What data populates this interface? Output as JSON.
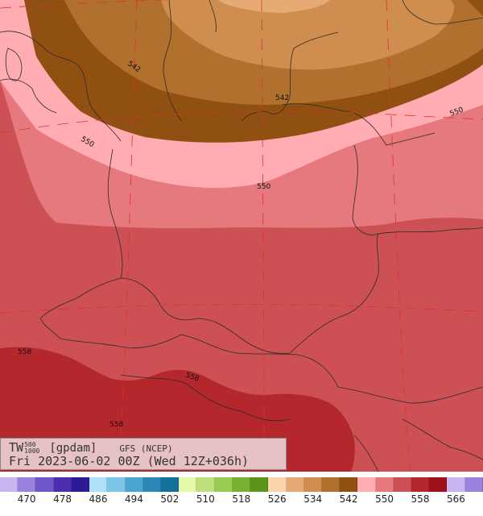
{
  "map": {
    "field_label": "TW",
    "level_top": "500",
    "level_bottom": "1000",
    "unit": "[gpdam]",
    "model": "GFS (NCEP)",
    "valid_line": "Fri 2023-06-02 00Z (Wed 12Z+036h)",
    "contour_labels": [
      "542",
      "542",
      "550",
      "550",
      "550",
      "558",
      "558",
      "558"
    ]
  },
  "colorbar": {
    "colors": [
      "#c8b4f0",
      "#9a82e0",
      "#6e55c8",
      "#4b2eb0",
      "#2d1a96",
      "#aee0fa",
      "#7cc4e6",
      "#4aa6d0",
      "#2a88b8",
      "#127099",
      "#e4faa8",
      "#bee07a",
      "#98cc55",
      "#78b030",
      "#5a9418",
      "#fbd5ad",
      "#e6aa74",
      "#cf8e4f",
      "#b2702e",
      "#8f5012",
      "#ffacb2",
      "#e6797d",
      "#cd5054",
      "#b4282d",
      "#a0101a",
      "#c8b4f0",
      "#9a82e0"
    ],
    "tick_labels": [
      "470",
      "478",
      "486",
      "494",
      "502",
      "510",
      "518",
      "526",
      "534",
      "542",
      "550",
      "558",
      "566"
    ]
  }
}
